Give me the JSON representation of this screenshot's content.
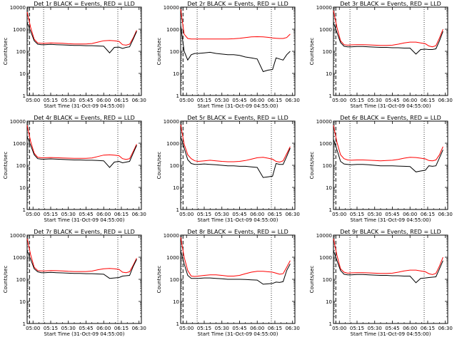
{
  "chart_data": {
    "type": "line",
    "panels": [
      {
        "title": "Det 1r BLACK = Events, RED = LLD",
        "x": [
          0,
          3,
          6,
          9,
          12,
          15,
          20,
          25,
          30,
          35,
          40,
          45,
          50,
          55,
          60,
          65,
          70,
          74,
          78,
          81,
          84,
          87,
          90,
          93
        ],
        "series": [
          {
            "color": "#000000",
            "values": [
              2000,
              800,
              300,
              210,
              200,
              200,
              205,
              200,
              195,
              190,
              185,
              185,
              180,
              180,
              175,
              170,
              85,
              150,
              155,
              135,
              150,
              160,
              350,
              800
            ]
          },
          {
            "color": "#ff0000",
            "values": [
              6000,
              1200,
              350,
              240,
              230,
              230,
              240,
              235,
              230,
              220,
              215,
              215,
              215,
              225,
              260,
              300,
              310,
              300,
              280,
              200,
              190,
              210,
              400,
              900
            ]
          }
        ]
      },
      {
        "title": "Det 2r BLACK = Events, RED = LLD",
        "x": [
          0,
          3,
          6,
          9,
          12,
          15,
          20,
          25,
          30,
          35,
          40,
          45,
          50,
          55,
          60,
          65,
          70,
          74,
          78,
          81,
          84,
          87,
          90,
          93
        ],
        "series": [
          {
            "color": "#000000",
            "values": [
              1500,
              100,
              40,
              70,
              80,
              80,
              85,
              90,
              80,
              75,
              70,
              70,
              65,
              55,
              50,
              45,
              12,
              14,
              15,
              50,
              45,
              40,
              70,
              100
            ]
          },
          {
            "color": "#ff0000",
            "values": [
              8000,
              600,
              380,
              360,
              360,
              360,
              360,
              360,
              360,
              360,
              360,
              370,
              390,
              420,
              450,
              460,
              450,
              430,
              400,
              390,
              380,
              380,
              420,
              600
            ]
          }
        ]
      },
      {
        "title": "Det 3r BLACK = Events, RED = LLD",
        "x": [
          0,
          3,
          6,
          9,
          12,
          15,
          20,
          25,
          30,
          35,
          40,
          45,
          50,
          55,
          60,
          65,
          70,
          74,
          78,
          81,
          84,
          87,
          90,
          93
        ],
        "series": [
          {
            "color": "#000000",
            "values": [
              2000,
              700,
              250,
              170,
              160,
              160,
              165,
              165,
              160,
              155,
              150,
              150,
              145,
              145,
              140,
              140,
              75,
              120,
              125,
              120,
              120,
              130,
              300,
              800
            ]
          },
          {
            "color": "#ff0000",
            "values": [
              7000,
              1200,
              300,
              200,
              190,
              195,
              200,
              200,
              195,
              190,
              185,
              185,
              190,
              210,
              240,
              260,
              260,
              240,
              220,
              175,
              160,
              180,
              400,
              1000
            ]
          }
        ]
      },
      {
        "title": "Det 4r BLACK = Events, RED = LLD",
        "x": [
          0,
          3,
          6,
          9,
          12,
          15,
          20,
          25,
          30,
          35,
          40,
          45,
          50,
          55,
          60,
          65,
          70,
          74,
          78,
          81,
          84,
          87,
          90,
          93
        ],
        "series": [
          {
            "color": "#000000",
            "values": [
              2000,
              800,
              300,
              200,
              190,
              190,
              195,
              190,
              185,
              180,
              175,
              175,
              170,
              170,
              165,
              160,
              80,
              140,
              150,
              130,
              140,
              150,
              350,
              800
            ]
          },
          {
            "color": "#ff0000",
            "values": [
              6500,
              1200,
              350,
              230,
              220,
              220,
              225,
              220,
              215,
              210,
              205,
              205,
              205,
              215,
              250,
              290,
              300,
              290,
              270,
              200,
              185,
              200,
              420,
              900
            ]
          }
        ]
      },
      {
        "title": "Det 5r BLACK = Events, RED = LLD",
        "x": [
          0,
          3,
          6,
          9,
          12,
          15,
          20,
          25,
          30,
          35,
          40,
          45,
          50,
          55,
          60,
          65,
          70,
          74,
          78,
          81,
          84,
          87,
          90,
          93
        ],
        "series": [
          {
            "color": "#000000",
            "values": [
              2000,
              600,
              180,
              120,
              110,
              110,
              115,
              110,
              105,
              100,
              95,
              95,
              90,
              90,
              85,
              80,
              28,
              30,
              32,
              120,
              110,
              110,
              250,
              600
            ]
          },
          {
            "color": "#ff0000",
            "values": [
              7000,
              900,
              300,
              200,
              160,
              150,
              160,
              170,
              160,
              150,
              145,
              145,
              150,
              165,
              190,
              220,
              230,
              210,
              190,
              150,
              140,
              160,
              330,
              700
            ]
          }
        ]
      },
      {
        "title": "Det 6r BLACK = Events, RED = LLD",
        "x": [
          0,
          3,
          6,
          9,
          12,
          15,
          20,
          25,
          30,
          35,
          40,
          45,
          50,
          55,
          60,
          65,
          70,
          74,
          78,
          81,
          84,
          87,
          90,
          93
        ],
        "series": [
          {
            "color": "#000000",
            "values": [
              1500,
              500,
              150,
              115,
              110,
              105,
              110,
              110,
              105,
              100,
              95,
              95,
              95,
              92,
              90,
              88,
              50,
              55,
              60,
              95,
              90,
              95,
              220,
              500
            ]
          },
          {
            "color": "#ff0000",
            "values": [
              6500,
              1100,
              300,
              200,
              175,
              170,
              175,
              175,
              170,
              165,
              160,
              165,
              170,
              185,
              210,
              230,
              225,
              210,
              195,
              165,
              160,
              175,
              300,
              700
            ]
          }
        ]
      },
      {
        "title": "Det 7r BLACK = Events, RED = LLD",
        "x": [
          0,
          3,
          6,
          9,
          12,
          15,
          20,
          25,
          30,
          35,
          40,
          45,
          50,
          55,
          60,
          65,
          70,
          74,
          78,
          81,
          84,
          87,
          90,
          93
        ],
        "series": [
          {
            "color": "#000000",
            "values": [
              2000,
              800,
              300,
              220,
              200,
              200,
              205,
              200,
              195,
              190,
              185,
              185,
              180,
              180,
              175,
              170,
              110,
              115,
              120,
              140,
              145,
              150,
              380,
              800
            ]
          },
          {
            "color": "#ff0000",
            "values": [
              7000,
              1300,
              350,
              250,
              240,
              240,
              250,
              245,
              240,
              230,
              225,
              225,
              225,
              235,
              270,
              300,
              310,
              300,
              280,
              210,
              200,
              220,
              430,
              900
            ]
          }
        ]
      },
      {
        "title": "Det 8r BLACK = Events, RED = LLD",
        "x": [
          0,
          3,
          6,
          9,
          12,
          15,
          20,
          25,
          30,
          35,
          40,
          45,
          50,
          55,
          60,
          65,
          70,
          74,
          78,
          81,
          84,
          87,
          90,
          93
        ],
        "series": [
          {
            "color": "#000000",
            "values": [
              2000,
              500,
              150,
              110,
              110,
              110,
              115,
              115,
              110,
              105,
              100,
              100,
              100,
              98,
              95,
              92,
              60,
              62,
              65,
              75,
              72,
              78,
              250,
              500
            ]
          },
          {
            "color": "#ff0000",
            "values": [
              8000,
              1000,
              250,
              140,
              135,
              140,
              150,
              160,
              160,
              150,
              140,
              140,
              150,
              180,
              210,
              230,
              230,
              220,
              210,
              190,
              170,
              180,
              350,
              700
            ]
          }
        ]
      },
      {
        "title": "Det 9r BLACK = Events, RED = LLD",
        "x": [
          0,
          3,
          6,
          9,
          12,
          15,
          20,
          25,
          30,
          35,
          40,
          45,
          50,
          55,
          60,
          65,
          70,
          74,
          78,
          81,
          84,
          87,
          90,
          93
        ],
        "series": [
          {
            "color": "#000000",
            "values": [
              2000,
              700,
              250,
              170,
              160,
              160,
              165,
              165,
              160,
              155,
              150,
              150,
              145,
              145,
              140,
              140,
              70,
              110,
              115,
              120,
              125,
              130,
              300,
              700
            ]
          },
          {
            "color": "#ff0000",
            "values": [
              7000,
              1200,
              300,
              210,
              190,
              195,
              200,
              200,
              195,
              190,
              185,
              185,
              190,
              210,
              240,
              260,
              260,
              240,
              220,
              180,
              165,
              185,
              400,
              1000
            ]
          }
        ]
      }
    ],
    "ylabel": "Counts/sec",
    "xlabel": "Start Time (31-Oct-09 04:55:00)",
    "xticklabels": [
      "05:00",
      "05:15",
      "05:30",
      "05:45",
      "06:00",
      "06:15",
      "06:30"
    ],
    "xtick_minutes": [
      5,
      20,
      35,
      50,
      65,
      80,
      95
    ],
    "yticklabels": [
      "1",
      "10",
      "100",
      "1000",
      "10000"
    ],
    "ytick_values": [
      1,
      10,
      100,
      1000,
      10000
    ],
    "xlim_minutes": [
      0,
      97
    ],
    "ylim": [
      1,
      10000
    ],
    "yscale": "log",
    "dotted_vlines_minutes": [
      14,
      77
    ],
    "dashed_vline_minutes": 2,
    "grid": false
  }
}
